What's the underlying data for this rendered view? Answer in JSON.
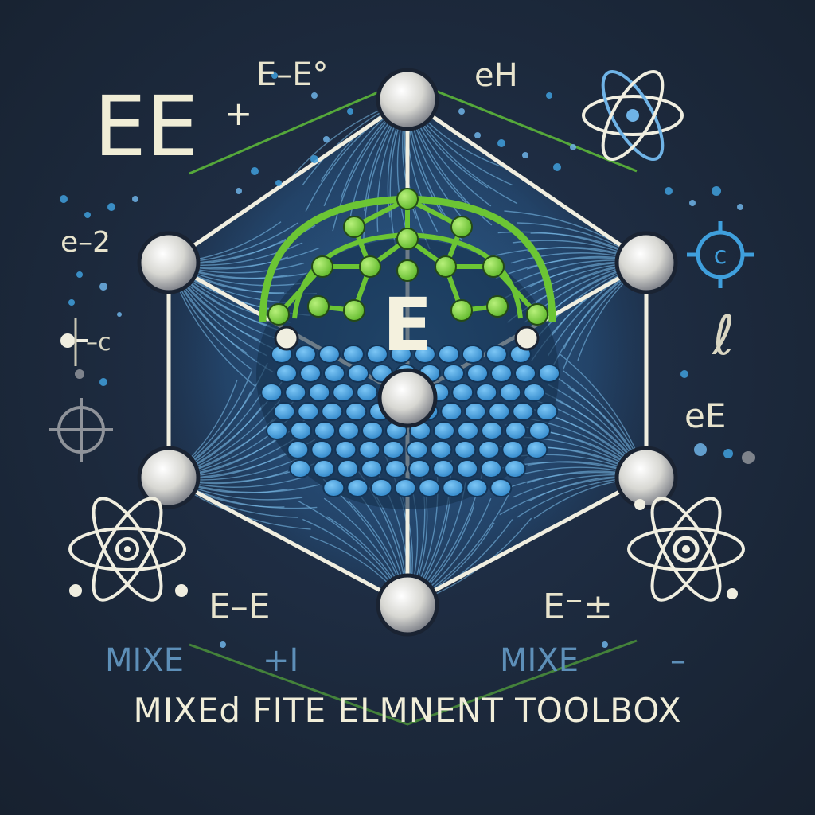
{
  "header_labels": {
    "big_ee": "EE",
    "big_plus": "+",
    "top_formula_left": "E–E°",
    "top_formula_right": "eH"
  },
  "side_labels": {
    "left_e2": "e–2",
    "left_hc": "–c",
    "right_ee": "eE",
    "right_ei": "ℓ"
  },
  "lower_labels": {
    "left_ee": "E–E",
    "right_ef": "E⁻±",
    "mixed_left": "MIXE",
    "mixed_plus": "+I",
    "mixed_right": "MIXE",
    "mixed_right_dash": "–"
  },
  "center_letter": "E",
  "title": "MIXEd FITE ELMNENT TOOLBOX",
  "colors": {
    "background": "#1d2a3e",
    "green": "#6cc534",
    "blue": "#3f9fdc",
    "cream": "#f0edd6"
  }
}
